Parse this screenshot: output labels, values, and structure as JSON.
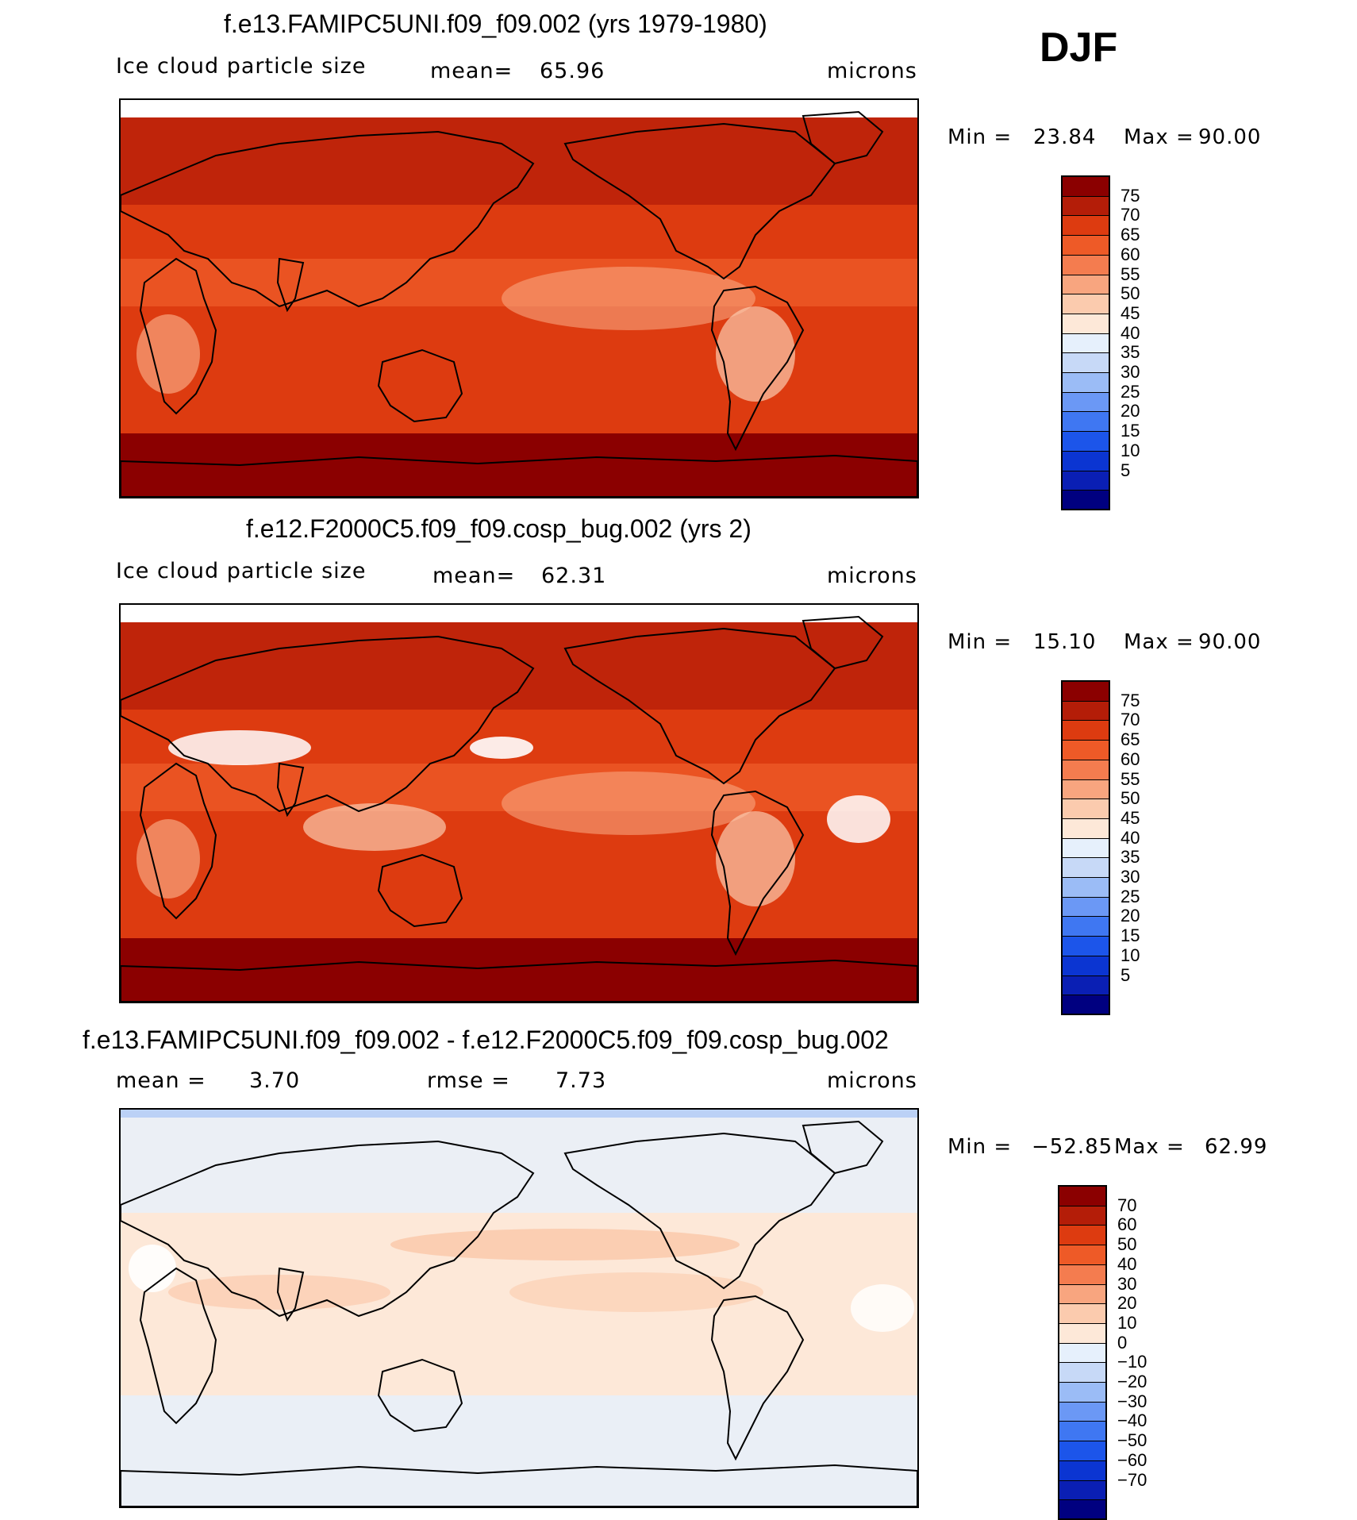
{
  "season": "DJF",
  "units": "microns",
  "colors": {
    "abs_scale": [
      "#000080",
      "#0a1fb4",
      "#0b35d2",
      "#1c55ea",
      "#3f77f2",
      "#6b98f5",
      "#9bbcf6",
      "#c7d9f7",
      "#e6f0fc",
      "#fde8d8",
      "#fbcbae",
      "#f8a57f",
      "#f47c4f",
      "#ee5a27",
      "#dd3b10",
      "#b41d08",
      "#8b0000"
    ],
    "diff_scale": [
      "#000080",
      "#0a1fb4",
      "#0b35d2",
      "#1c55ea",
      "#3f77f2",
      "#6b98f5",
      "#9bbcf6",
      "#c7d9f7",
      "#e6f0fc",
      "#fde8d8",
      "#fbcbae",
      "#f8a57f",
      "#f47c4f",
      "#ee5a27",
      "#dd3b10",
      "#b41d08",
      "#8b0000"
    ]
  },
  "chart_data": [
    {
      "type": "heatmap",
      "title": "f.e13.FAMIPC5UNI.f09_f09.002 (yrs 1979-1980)",
      "variable_label": "Ice cloud particle size",
      "mean_label": "mean=",
      "mean": "65.96",
      "units": "microns",
      "min_label": "Min =",
      "min": "23.84",
      "max_label": "Max =",
      "max": "90.00",
      "levels": [
        "75",
        "70",
        "65",
        "60",
        "55",
        "50",
        "45",
        "40",
        "35",
        "30",
        "25",
        "20",
        "15",
        "10",
        "5"
      ],
      "dominant_value_range": [
        55,
        80
      ]
    },
    {
      "type": "heatmap",
      "title": "f.e12.F2000C5.f09_f09.cosp_bug.002 (yrs 2)",
      "variable_label": "Ice cloud particle size",
      "mean_label": "mean=",
      "mean": "62.31",
      "units": "microns",
      "min_label": "Min =",
      "min": "15.10",
      "max_label": "Max =",
      "max": "90.00",
      "levels": [
        "75",
        "70",
        "65",
        "60",
        "55",
        "50",
        "45",
        "40",
        "35",
        "30",
        "25",
        "20",
        "15",
        "10",
        "5"
      ],
      "dominant_value_range": [
        45,
        80
      ]
    },
    {
      "type": "heatmap",
      "title": "f.e13.FAMIPC5UNI.f09_f09.002 - f.e12.F2000C5.f09_f09.cosp_bug.002",
      "mean_label": "mean =",
      "mean": "3.70",
      "rmse_label": "rmse =",
      "rmse": "7.73",
      "units": "microns",
      "min_label": "Min =",
      "min": "−52.85",
      "max_label": "Max =",
      "max": "62.99",
      "levels": [
        "70",
        "60",
        "50",
        "40",
        "30",
        "20",
        "10",
        "0",
        "−10",
        "−20",
        "−30",
        "−40",
        "−50",
        "−60",
        "−70"
      ],
      "dominant_value_range": [
        -10,
        20
      ]
    }
  ]
}
